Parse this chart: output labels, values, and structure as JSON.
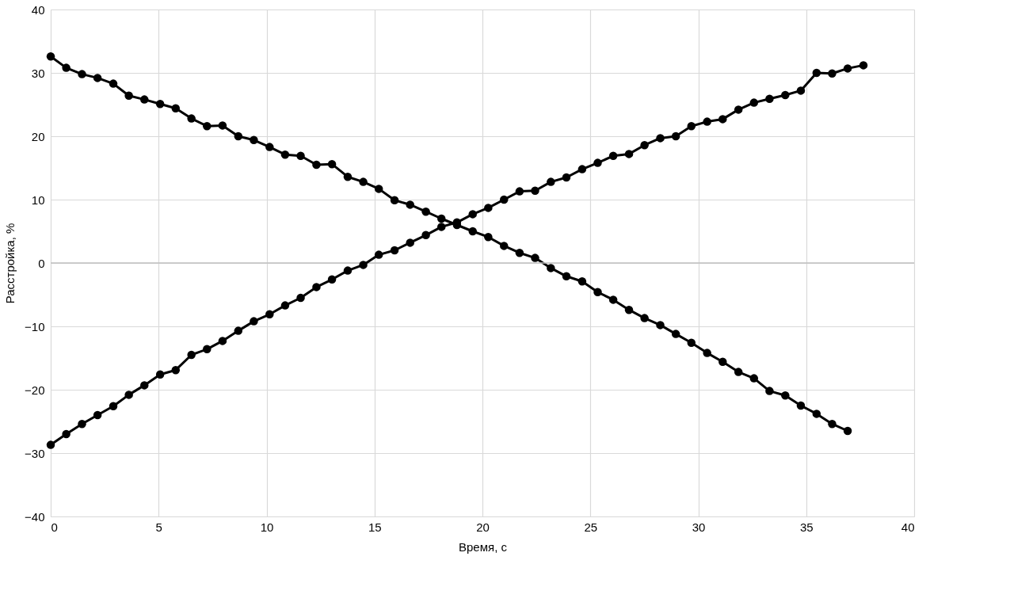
{
  "chart_data": {
    "type": "line",
    "xlabel": "Время, с",
    "ylabel": "Расстройка, %",
    "xlim": [
      0,
      40
    ],
    "xticks": [
      0,
      5,
      10,
      15,
      20,
      25,
      30,
      35,
      40
    ],
    "ylim": [
      -40,
      40
    ],
    "yticks": [
      -40,
      -30,
      -20,
      -10,
      0,
      10,
      20,
      30,
      40
    ],
    "grid": true,
    "marker": "circle",
    "line_style": "solid",
    "series": [
      {
        "color": "#000000",
        "x": [
          0,
          0.72,
          1.45,
          2.17,
          2.9,
          3.62,
          4.34,
          5.07,
          5.79,
          6.52,
          7.24,
          7.96,
          8.69,
          9.41,
          10.14,
          10.86,
          11.58,
          12.31,
          13.03,
          13.76,
          14.48,
          15.2,
          15.93,
          16.65,
          17.38,
          18.1,
          18.82,
          19.55,
          20.27,
          21.0,
          21.72,
          22.44,
          23.17,
          23.89,
          24.62,
          25.34,
          26.06,
          26.79,
          27.51,
          28.24,
          28.96,
          29.68,
          30.41,
          31.13,
          31.86,
          32.58,
          33.3,
          34.03,
          34.75,
          35.48,
          36.2,
          36.92
        ],
        "values": [
          32.6,
          30.8,
          29.8,
          29.2,
          28.3,
          26.4,
          25.8,
          25.1,
          24.4,
          22.8,
          21.6,
          21.7,
          20.0,
          19.4,
          18.3,
          17.1,
          16.9,
          15.5,
          15.6,
          13.6,
          12.8,
          11.7,
          9.9,
          9.2,
          8.1,
          7.0,
          6.0,
          5.0,
          4.1,
          2.7,
          1.6,
          0.8,
          -0.8,
          -2.1,
          -2.9,
          -4.6,
          -5.8,
          -7.4,
          -8.7,
          -9.8,
          -11.2,
          -12.6,
          -14.2,
          -15.6,
          -17.2,
          -18.2,
          -20.2,
          -20.9,
          -22.5,
          -23.8,
          -25.4,
          -26.5
        ]
      },
      {
        "color": "#000000",
        "x": [
          0,
          0.72,
          1.45,
          2.17,
          2.9,
          3.62,
          4.34,
          5.07,
          5.79,
          6.52,
          7.24,
          7.96,
          8.69,
          9.41,
          10.14,
          10.86,
          11.58,
          12.31,
          13.03,
          13.76,
          14.48,
          15.2,
          15.93,
          16.65,
          17.38,
          18.1,
          18.82,
          19.55,
          20.27,
          21.0,
          21.72,
          22.44,
          23.17,
          23.89,
          24.62,
          25.34,
          26.06,
          26.79,
          27.51,
          28.24,
          28.96,
          29.68,
          30.41,
          31.13,
          31.86,
          32.58,
          33.3,
          34.03,
          34.75,
          35.48,
          36.2,
          36.92,
          37.65
        ],
        "values": [
          -28.7,
          -27.0,
          -25.4,
          -24.0,
          -22.6,
          -20.8,
          -19.3,
          -17.6,
          -16.9,
          -14.5,
          -13.6,
          -12.3,
          -10.7,
          -9.2,
          -8.1,
          -6.7,
          -5.5,
          -3.8,
          -2.6,
          -1.2,
          -0.3,
          1.3,
          2.0,
          3.2,
          4.4,
          5.7,
          6.4,
          7.7,
          8.7,
          10.0,
          11.3,
          11.4,
          12.8,
          13.5,
          14.8,
          15.8,
          16.9,
          17.2,
          18.6,
          19.7,
          20.0,
          21.6,
          22.3,
          22.7,
          24.2,
          25.3,
          25.9,
          26.5,
          27.2,
          30.0,
          29.9,
          30.7,
          31.2
        ]
      }
    ]
  }
}
